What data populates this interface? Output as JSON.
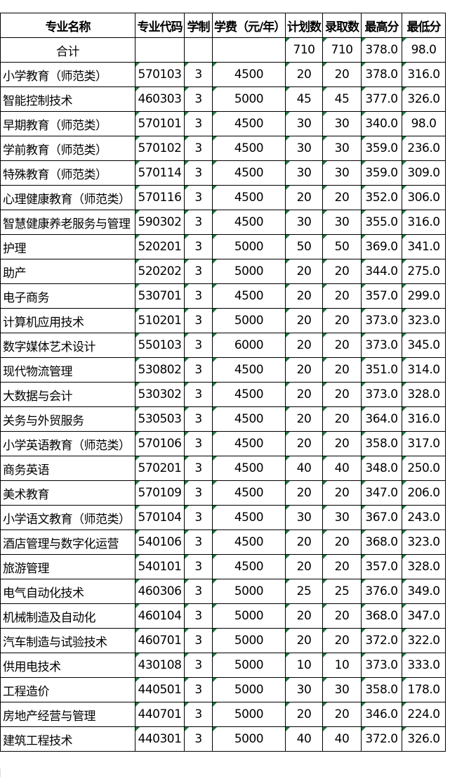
{
  "table": {
    "columns": [
      "专业名称",
      "专业代码",
      "学制",
      "学费（元/年）",
      "计划数",
      "录取数",
      "最高分",
      "最低分"
    ],
    "total": {
      "label": "合计",
      "plan": "710",
      "admitted": "710",
      "max": "378.0",
      "min": "98.0"
    },
    "rows": [
      [
        "小学教育（师范类）",
        "570103",
        "3",
        "4500",
        "20",
        "20",
        "378.0",
        "316.0"
      ],
      [
        "智能控制技术",
        "460303",
        "3",
        "5000",
        "45",
        "45",
        "377.0",
        "326.0"
      ],
      [
        "早期教育（师范类）",
        "570101",
        "3",
        "4500",
        "30",
        "30",
        "340.0",
        "98.0"
      ],
      [
        "学前教育（师范类）",
        "570102",
        "3",
        "4500",
        "30",
        "30",
        "359.0",
        "236.0"
      ],
      [
        "特殊教育（师范类）",
        "570114",
        "3",
        "4500",
        "30",
        "30",
        "359.0",
        "309.0"
      ],
      [
        "心理健康教育（师范类）",
        "570116",
        "3",
        "4500",
        "20",
        "20",
        "352.0",
        "306.0"
      ],
      [
        "智慧健康养老服务与管理",
        "590302",
        "3",
        "4500",
        "30",
        "30",
        "355.0",
        "316.0"
      ],
      [
        "护理",
        "520201",
        "3",
        "5000",
        "50",
        "50",
        "369.0",
        "341.0"
      ],
      [
        "助产",
        "520202",
        "3",
        "5000",
        "20",
        "20",
        "344.0",
        "275.0"
      ],
      [
        "电子商务",
        "530701",
        "3",
        "4500",
        "20",
        "20",
        "357.0",
        "299.0"
      ],
      [
        "计算机应用技术",
        "510201",
        "3",
        "5000",
        "20",
        "20",
        "373.0",
        "323.0"
      ],
      [
        "数字媒体艺术设计",
        "550103",
        "3",
        "6000",
        "20",
        "20",
        "373.0",
        "345.0"
      ],
      [
        "现代物流管理",
        "530802",
        "3",
        "4500",
        "20",
        "20",
        "351.0",
        "314.0"
      ],
      [
        "大数据与会计",
        "530302",
        "3",
        "4500",
        "20",
        "20",
        "373.0",
        "328.0"
      ],
      [
        "关务与外贸服务",
        "530503",
        "3",
        "4500",
        "20",
        "20",
        "364.0",
        "316.0"
      ],
      [
        "小学英语教育（师范类）",
        "570106",
        "3",
        "4500",
        "20",
        "20",
        "358.0",
        "317.0"
      ],
      [
        "商务英语",
        "570201",
        "3",
        "4500",
        "40",
        "40",
        "348.0",
        "250.0"
      ],
      [
        "美术教育",
        "570109",
        "3",
        "4500",
        "20",
        "20",
        "347.0",
        "206.0"
      ],
      [
        "小学语文教育（师范类）",
        "570104",
        "3",
        "4500",
        "30",
        "30",
        "367.0",
        "243.0"
      ],
      [
        "酒店管理与数字化运营",
        "540106",
        "3",
        "4500",
        "20",
        "20",
        "368.0",
        "323.0"
      ],
      [
        "旅游管理",
        "540101",
        "3",
        "4500",
        "20",
        "20",
        "357.0",
        "328.0"
      ],
      [
        "电气自动化技术",
        "460306",
        "3",
        "5000",
        "25",
        "25",
        "376.0",
        "349.0"
      ],
      [
        "机械制造及自动化",
        "460104",
        "3",
        "5000",
        "20",
        "20",
        "368.0",
        "347.0"
      ],
      [
        "汽车制造与试验技术",
        "460701",
        "3",
        "5000",
        "20",
        "20",
        "372.0",
        "322.0"
      ],
      [
        "供用电技术",
        "430108",
        "3",
        "5000",
        "10",
        "10",
        "373.0",
        "333.0"
      ],
      [
        "工程造价",
        "440501",
        "3",
        "5000",
        "30",
        "30",
        "358.0",
        "178.0"
      ],
      [
        "房地产经营与管理",
        "440701",
        "3",
        "5000",
        "20",
        "20",
        "346.0",
        "224.0"
      ],
      [
        "建筑工程技术",
        "440301",
        "3",
        "5000",
        "40",
        "40",
        "372.0",
        "326.0"
      ]
    ]
  }
}
